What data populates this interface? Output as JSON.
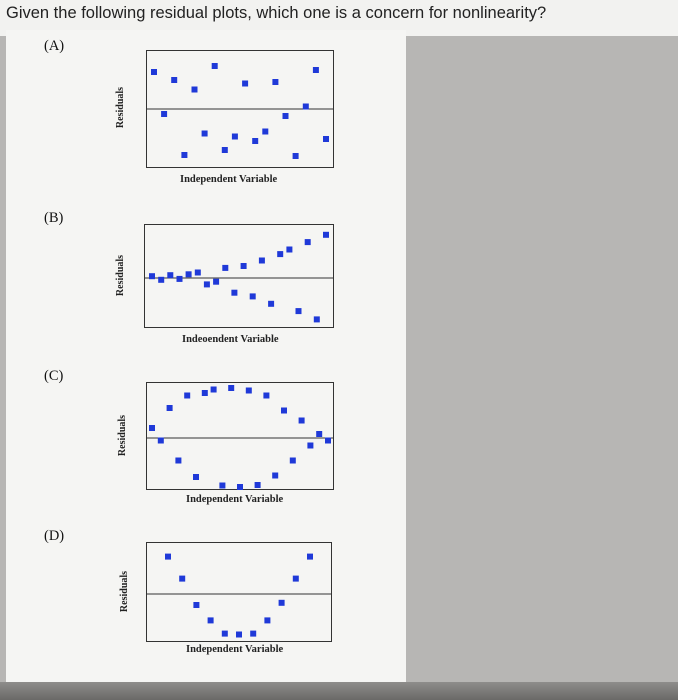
{
  "question": "Given the following residual plots, which one is a concern for nonlinearity?",
  "colors": {
    "marker": "#1f39d8",
    "axis": "#333333",
    "paper": "#f5f5f3"
  },
  "options": [
    {
      "label": "(A)",
      "ylabel": "Residuals",
      "xlabel": "Independent Variable"
    },
    {
      "label": "(B)",
      "ylabel": "Residuals",
      "xlabel": "Indeoendent Variable"
    },
    {
      "label": "(C)",
      "ylabel": "Residuals",
      "xlabel": "Independent Variable"
    },
    {
      "label": "(D)",
      "ylabel": "Residuals",
      "xlabel": "Independent Variable"
    }
  ],
  "chart_data": [
    {
      "type": "scatter",
      "ylabel": "Residuals",
      "xlabel": "Independent Variable",
      "ylim": [
        -1,
        1
      ],
      "x": [
        1,
        2,
        3,
        4,
        5,
        6,
        7,
        8,
        9,
        10,
        11,
        12,
        13,
        14,
        15,
        16,
        17,
        18
      ],
      "y": [
        0.74,
        -0.1,
        0.58,
        -0.92,
        0.39,
        -0.49,
        0.86,
        -0.82,
        -0.55,
        0.51,
        -0.64,
        -0.45,
        0.54,
        -0.14,
        -0.94,
        0.05,
        0.78,
        -0.6
      ]
    },
    {
      "type": "scatter",
      "ylabel": "Residuals",
      "xlabel": "Indeoendent Variable",
      "ylim": [
        -1,
        1
      ],
      "x": [
        1,
        2,
        3,
        4,
        5,
        6,
        7,
        8,
        9,
        10,
        11,
        12,
        13,
        14,
        15,
        16,
        17,
        18,
        19,
        20
      ],
      "y": [
        0.04,
        -0.04,
        0.06,
        -0.02,
        0.08,
        0.12,
        -0.14,
        -0.08,
        0.22,
        -0.32,
        0.26,
        -0.4,
        0.38,
        -0.56,
        0.52,
        0.62,
        -0.72,
        0.78,
        -0.9,
        0.94
      ]
    },
    {
      "type": "scatter",
      "ylabel": "Residuals",
      "xlabel": "Independent Variable",
      "ylim": [
        -1,
        1
      ],
      "x": [
        1,
        2,
        3,
        4,
        5,
        6,
        7,
        8,
        9,
        10,
        11,
        12,
        13,
        14,
        15,
        16,
        17,
        18,
        19,
        20,
        21
      ],
      "y": [
        0.2,
        -0.05,
        0.6,
        -0.45,
        0.85,
        -0.78,
        0.9,
        0.97,
        -0.95,
        1.0,
        -0.98,
        0.95,
        -0.94,
        0.85,
        -0.75,
        0.55,
        -0.45,
        0.35,
        -0.15,
        0.08,
        -0.05
      ]
    },
    {
      "type": "scatter",
      "ylabel": "Residuals",
      "xlabel": "Independent Variable",
      "ylim": [
        -1,
        1
      ],
      "x": [
        1,
        2,
        3,
        4,
        5,
        6,
        7,
        8,
        9,
        10,
        11
      ],
      "y": [
        0.85,
        0.35,
        -0.25,
        -0.6,
        -0.9,
        -0.92,
        -0.9,
        -0.6,
        -0.2,
        0.35,
        0.85
      ]
    }
  ]
}
